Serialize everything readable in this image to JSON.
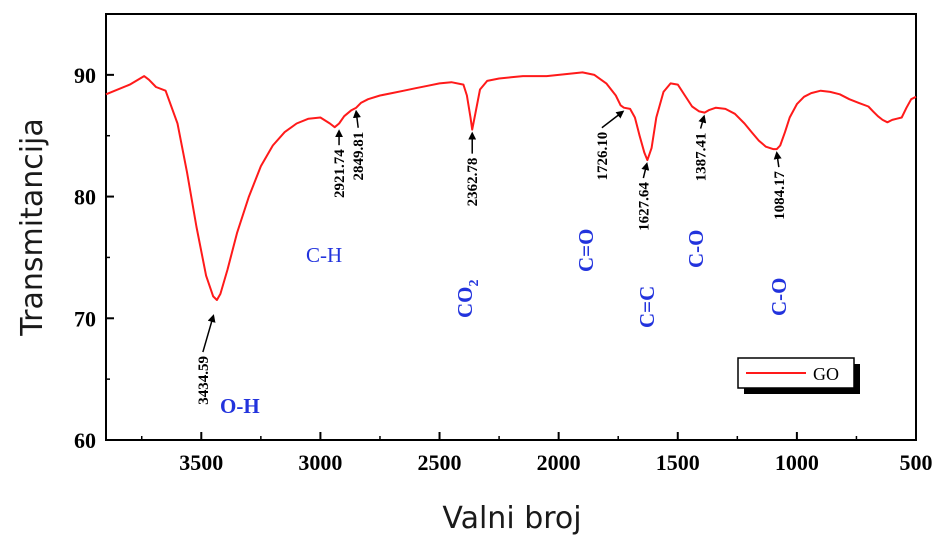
{
  "chart_data": {
    "type": "line",
    "xlabel": "Valni broj",
    "ylabel": "Transmitancija",
    "xlim": [
      3900,
      500
    ],
    "ylim": [
      60,
      95
    ],
    "x_ticks": [
      3500,
      3000,
      2500,
      2000,
      1500,
      1000,
      500
    ],
    "x_tick_labels": [
      "3500",
      "3000",
      "2500",
      "2000",
      "1500",
      "1000",
      "500"
    ],
    "y_ticks": [
      60,
      70,
      80,
      90
    ],
    "y_tick_labels": [
      "60",
      "70",
      "80",
      "90"
    ],
    "legend": {
      "position": "bottom-right",
      "entries": [
        "GO"
      ]
    },
    "line_color": "#ff1a1a",
    "group_color": "#2233dd",
    "series": [
      {
        "name": "GO",
        "x": [
          3900,
          3800,
          3740,
          3720,
          3690,
          3650,
          3600,
          3560,
          3520,
          3480,
          3450,
          3434.59,
          3420,
          3390,
          3350,
          3300,
          3250,
          3200,
          3150,
          3100,
          3050,
          3000,
          2960,
          2940,
          2921.74,
          2900,
          2870,
          2849.81,
          2830,
          2800,
          2750,
          2700,
          2650,
          2600,
          2550,
          2500,
          2450,
          2400,
          2385,
          2370,
          2362.78,
          2350,
          2330,
          2300,
          2250,
          2200,
          2150,
          2100,
          2050,
          2000,
          1950,
          1900,
          1850,
          1800,
          1760,
          1740,
          1726.1,
          1700,
          1680,
          1660,
          1640,
          1627.64,
          1610,
          1590,
          1560,
          1530,
          1500,
          1470,
          1440,
          1410,
          1387.41,
          1370,
          1340,
          1300,
          1260,
          1220,
          1190,
          1160,
          1130,
          1100,
          1084.17,
          1070,
          1050,
          1030,
          1000,
          970,
          940,
          900,
          860,
          820,
          780,
          740,
          700,
          680,
          660,
          640,
          620,
          600,
          580,
          560,
          540,
          520,
          500
        ],
        "y": [
          88.4,
          89.2,
          89.9,
          89.6,
          89.0,
          88.7,
          86.0,
          82.0,
          77.5,
          73.5,
          71.8,
          71.5,
          72.0,
          74.0,
          77.0,
          80.0,
          82.5,
          84.2,
          85.3,
          86.0,
          86.4,
          86.5,
          86.0,
          85.7,
          86.0,
          86.6,
          87.1,
          87.3,
          87.7,
          88.0,
          88.3,
          88.5,
          88.7,
          88.9,
          89.1,
          89.3,
          89.4,
          89.2,
          88.3,
          86.5,
          85.5,
          86.8,
          88.8,
          89.5,
          89.7,
          89.8,
          89.9,
          89.9,
          89.9,
          90.0,
          90.1,
          90.2,
          90.0,
          89.3,
          88.3,
          87.5,
          87.3,
          87.2,
          86.5,
          85.0,
          83.6,
          83.0,
          84.0,
          86.5,
          88.6,
          89.3,
          89.2,
          88.3,
          87.4,
          87.0,
          86.9,
          87.1,
          87.3,
          87.2,
          86.8,
          86.0,
          85.3,
          84.6,
          84.1,
          83.9,
          83.9,
          84.2,
          85.3,
          86.5,
          87.6,
          88.2,
          88.5,
          88.7,
          88.6,
          88.4,
          88.0,
          87.7,
          87.4,
          87.0,
          86.6,
          86.3,
          86.1,
          86.3,
          86.4,
          86.5,
          87.3,
          88.0,
          88.2
        ]
      }
    ],
    "annotations": [
      {
        "label": "3434.59",
        "x": 3434.59,
        "y": 71.5
      },
      {
        "label": "2921.74",
        "x": 2921.74,
        "y": 85.7
      },
      {
        "label": "2849.81",
        "x": 2849.81,
        "y": 87.3
      },
      {
        "label": "2362.78",
        "x": 2362.78,
        "y": 85.5
      },
      {
        "label": "1726.10",
        "x": 1726.1,
        "y": 87.3
      },
      {
        "label": "1627.64",
        "x": 1627.64,
        "y": 83.0
      },
      {
        "label": "1387.41",
        "x": 1387.41,
        "y": 86.9
      },
      {
        "label": "1084.17",
        "x": 1084.17,
        "y": 83.9
      }
    ],
    "groups": [
      {
        "label": "O-H"
      },
      {
        "label": "C-H"
      },
      {
        "label": "CO",
        "subscript": "2"
      },
      {
        "label": "C=O"
      },
      {
        "label": "C=C"
      },
      {
        "label": "C-O"
      },
      {
        "label": "C-O"
      }
    ]
  }
}
